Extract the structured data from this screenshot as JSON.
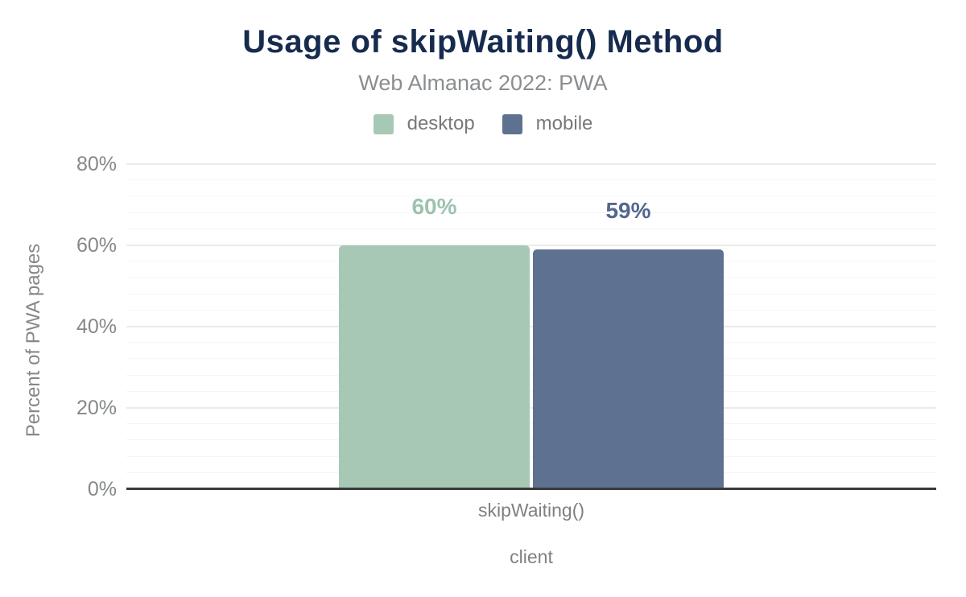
{
  "header": {
    "title": "Usage of skipWaiting() Method",
    "subtitle": "Web Almanac 2022: PWA"
  },
  "legend": {
    "items": [
      {
        "label": "desktop",
        "color": "#a6c8b5"
      },
      {
        "label": "mobile",
        "color": "#5f7190"
      }
    ]
  },
  "chart_data": {
    "type": "bar",
    "title": "Usage of skipWaiting() Method",
    "subtitle": "Web Almanac 2022: PWA",
    "categories": [
      "skipWaiting()"
    ],
    "series": [
      {
        "name": "desktop",
        "values": [
          60
        ],
        "data_labels": [
          "60%"
        ],
        "color": "#a6c8b5",
        "label_color": "#9cc3b0"
      },
      {
        "name": "mobile",
        "values": [
          59
        ],
        "data_labels": [
          "59%"
        ],
        "color": "#5f7190",
        "label_color": "#53678f"
      }
    ],
    "xlabel": "client",
    "ylabel": "Percent of PWA pages",
    "ylim": [
      0,
      80
    ],
    "yticks": [
      {
        "value": 0,
        "label": "0%"
      },
      {
        "value": 20,
        "label": "20%"
      },
      {
        "value": 40,
        "label": "40%"
      },
      {
        "value": 60,
        "label": "60%"
      },
      {
        "value": 80,
        "label": "80%"
      }
    ],
    "grid": {
      "major_step": 20,
      "minor_step": 4,
      "legend_position": "top"
    }
  }
}
